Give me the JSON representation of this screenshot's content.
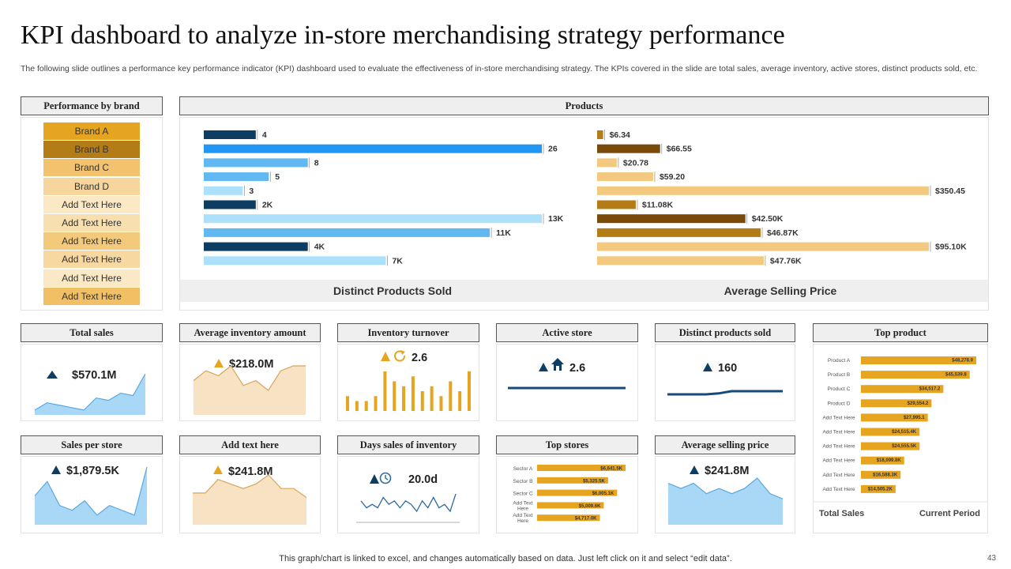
{
  "title": "KPI dashboard to analyze in-store merchandising strategy performance",
  "subtitle": "The following slide outlines a performance key performance indicator (KPI) dashboard used to evaluate the effectiveness of in-store merchandising strategy. The KPIs covered in the slide are total sales, average inventory, active stores, distinct products sold, etc.",
  "brand_panel": {
    "header": "Performance  by brand",
    "items": [
      "Brand A",
      "Brand B",
      "Brand C",
      "Brand D",
      "Add Text Here",
      "Add Text Here",
      "Add Text Here",
      "Add Text Here",
      "Add Text Here",
      "Add Text Here"
    ],
    "colors": [
      "#e6a521",
      "#b47c17",
      "#f2c26e",
      "#f6d69c",
      "#fbe8c4",
      "#f8dfb0",
      "#f3ca7c",
      "#f6d8a0",
      "#fbe8c4",
      "#f2c064"
    ]
  },
  "products": {
    "header": "Products",
    "caption_left": "Distinct Products Sold",
    "caption_right": "Average Selling Price"
  },
  "kpis": {
    "total_sales": {
      "header": "Total  sales",
      "value": "$570.1M"
    },
    "avg_inventory": {
      "header": "Average  inventory  amount",
      "value": "$218.0M"
    },
    "inventory_turnover": {
      "header": "Inventory  turnover",
      "value": "2.6"
    },
    "active_store": {
      "header": "Active  store",
      "value": "2.6"
    },
    "distinct_products": {
      "header": "Distinct  products  sold",
      "value": "160"
    },
    "sales_per_store": {
      "header": "Sales per  store",
      "value": "$1,879.5K"
    },
    "add_text": {
      "header": "Add  text here",
      "value": "$241.8M"
    },
    "days_sales_inventory": {
      "header": "Days sales of inventory",
      "value": "20.0d"
    },
    "top_stores": {
      "header": "Top  stores"
    },
    "avg_selling_price": {
      "header": "Average  selling price",
      "value": "$241.8M"
    },
    "top_product": {
      "header": "Top  product",
      "footer_left": "Total Sales",
      "footer_right": "Current Period"
    }
  },
  "icons": {
    "up": "up-triangle-icon",
    "cycle": "refresh-icon",
    "home": "home-icon",
    "clock": "clock-icon"
  },
  "colors": {
    "dark_navy": "#0d3d63",
    "blue": "#2196f3",
    "light_blue": "#62b8f0",
    "pale_blue": "#ade0fb",
    "gold": "#e6a521",
    "brown": "#b47c17",
    "tan": "#f2c97e",
    "navy_up": "#1c4b73"
  },
  "chart_data": [
    {
      "type": "bar",
      "orientation": "horizontal",
      "title": "Distinct Products Sold",
      "values": [
        4,
        26,
        8,
        5,
        3,
        2000,
        13000,
        11000,
        4000,
        7000
      ],
      "labels": [
        "4",
        "26",
        "8",
        "5",
        "3",
        "2K",
        "13K",
        "11K",
        "4K",
        "7K"
      ],
      "groups": [
        {
          "max": 26,
          "from": 0,
          "to": 5
        },
        {
          "max": 13000,
          "from": 5,
          "to": 10
        }
      ],
      "colors": [
        "#0d3d63",
        "#2196f3",
        "#62b8f0",
        "#62b8f0",
        "#ade0fb",
        "#0d3d63",
        "#ade0fb",
        "#62b8f0",
        "#0d3d63",
        "#ade0fb"
      ]
    },
    {
      "type": "bar",
      "orientation": "horizontal",
      "title": "Average Selling Price",
      "values": [
        6.34,
        66.55,
        20.78,
        59.2,
        350.45,
        11080,
        42500,
        46870,
        95100,
        47760
      ],
      "labels": [
        "$6.34",
        "$66.55",
        "$20.78",
        "$59.20",
        "$350.45",
        "$11.08K",
        "$42.50K",
        "$46.87K",
        "$95.10K",
        "$47.76K"
      ],
      "groups": [
        {
          "max": 350.45,
          "from": 0,
          "to": 5
        },
        {
          "max": 95100,
          "from": 5,
          "to": 10
        }
      ],
      "colors": [
        "#b47c17",
        "#7a4a0a",
        "#f2c97e",
        "#f2c97e",
        "#f2c97e",
        "#b47c17",
        "#7a4a0a",
        "#b47c17",
        "#f2c97e",
        "#f2c97e"
      ]
    },
    {
      "type": "area",
      "title": "Total sales",
      "values": [
        2,
        5,
        4,
        3,
        2,
        7,
        6,
        9,
        8,
        17
      ],
      "color": "#a8d8f5",
      "line": "#5aa8e0"
    },
    {
      "type": "area",
      "title": "Average inventory amount",
      "values": [
        7,
        9,
        8,
        10,
        6,
        7,
        5,
        9,
        10,
        10
      ],
      "color": "#f7e3c4",
      "line": "#d9a45a"
    },
    {
      "type": "bar",
      "title": "Inventory turnover",
      "values": [
        3,
        2,
        2,
        3,
        8,
        6,
        5,
        7,
        4,
        5,
        3,
        6,
        4,
        8
      ],
      "color": "#e6a521"
    },
    {
      "type": "line",
      "title": "Active store",
      "values": [
        1,
        1,
        1,
        1,
        1,
        1,
        1,
        1,
        1,
        1
      ],
      "color": "#174a7c"
    },
    {
      "type": "line",
      "title": "Distinct products sold",
      "values": [
        1,
        1,
        1,
        1,
        1.3,
        2,
        2,
        2,
        2,
        2
      ],
      "color": "#174a7c"
    },
    {
      "type": "area",
      "title": "Sales per store",
      "values": [
        6,
        9,
        4,
        3,
        5,
        2,
        4,
        3,
        2,
        12
      ],
      "color": "#a8d8f5",
      "line": "#5aa8e0"
    },
    {
      "type": "area",
      "title": "Add text here",
      "values": [
        7,
        7,
        10,
        9,
        8,
        9,
        11,
        8,
        8,
        6
      ],
      "color": "#f7e3c4",
      "line": "#d9a45a"
    },
    {
      "type": "line",
      "title": "Days sales of inventory",
      "values": [
        5,
        3,
        4,
        3,
        6,
        4,
        5,
        3,
        5,
        4,
        2,
        5,
        3,
        6,
        3,
        4,
        2,
        7
      ],
      "color": "#2e6aa0"
    },
    {
      "type": "bar",
      "orientation": "horizontal",
      "title": "Top stores",
      "categories": [
        "Sector A",
        "Sector B",
        "Sector C",
        "Add Text Here",
        "Add Text Here"
      ],
      "values": [
        6641.5,
        5325.5,
        6005.1,
        5009.6,
        4717.0
      ],
      "labels": [
        "$6,641.5K",
        "$5,325.5K",
        "$6,005.1K",
        "$5,009.6K",
        "$4,717.0K"
      ],
      "color": "#e6a521"
    },
    {
      "type": "area",
      "title": "Average selling price",
      "values": [
        8,
        7,
        8,
        6,
        7,
        6,
        7,
        9,
        6,
        5
      ],
      "color": "#a8d8f5",
      "line": "#5aa8e0"
    },
    {
      "type": "bar",
      "orientation": "horizontal",
      "title": "Top product",
      "categories": [
        "Product A",
        "Product B",
        "Product C",
        "Product D",
        "Add Text Here",
        "Add Text Here",
        "Add Text Here",
        "Add Text Here",
        "Add Text Here",
        "Add Text Here"
      ],
      "values": [
        48278.9,
        45539.8,
        34517.2,
        29554.2,
        27995.1,
        24515.4,
        24555.5,
        18099.8,
        16588.3,
        14505.2
      ],
      "labels": [
        "$48,278.9",
        "$45,539.8",
        "$34,517.2",
        "$29,554.2",
        "$27,995.1",
        "$24,515.4K",
        "$24,555.5K",
        "$18,099.8K",
        "$16,588.3K",
        "$14,505.2K"
      ],
      "color": "#e6a521"
    }
  ],
  "footer": "This graph/chart is linked to excel,  and changes automatically based on data. Just left click on it and select “edit data”.",
  "page_number": "43"
}
